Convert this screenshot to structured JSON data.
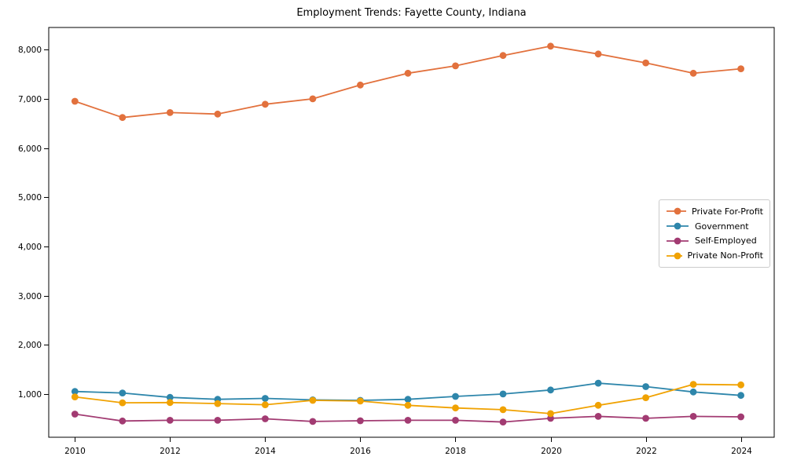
{
  "page": {
    "background_color": "#ffffff",
    "text_color": "#000000",
    "frame_color": "#000000",
    "legend_border_color": "#cbcbcb"
  },
  "chart_data": {
    "type": "line",
    "title": "Employment Trends: Fayette County, Indiana",
    "xlabel": "",
    "ylabel": "",
    "grid": false,
    "legend_position": "center right",
    "xlim": [
      2009.45,
      2024.7
    ],
    "ylim": [
      120,
      8450
    ],
    "x_ticks": [
      2010,
      2012,
      2014,
      2016,
      2018,
      2020,
      2022,
      2024
    ],
    "y_ticks": [
      1000,
      2000,
      3000,
      4000,
      5000,
      6000,
      7000,
      8000
    ],
    "y_tick_labels": [
      "1,000",
      "2,000",
      "3,000",
      "4,000",
      "5,000",
      "6,000",
      "7,000",
      "8,000"
    ],
    "x": [
      2010,
      2011,
      2012,
      2013,
      2014,
      2015,
      2016,
      2017,
      2018,
      2019,
      2020,
      2021,
      2022,
      2023,
      2024
    ],
    "series": [
      {
        "name": "Private For-Profit",
        "color": "#e2713d",
        "values": [
          6950,
          6620,
          6720,
          6690,
          6890,
          7000,
          7280,
          7520,
          7670,
          7880,
          8070,
          7910,
          7730,
          7520,
          7610
        ]
      },
      {
        "name": "Government",
        "color": "#2e86ab",
        "values": [
          1050,
          1020,
          930,
          890,
          910,
          880,
          870,
          890,
          950,
          1000,
          1080,
          1220,
          1150,
          1040,
          970
        ]
      },
      {
        "name": "Self-Employed",
        "color": "#a23b72",
        "values": [
          590,
          450,
          465,
          465,
          495,
          440,
          455,
          465,
          465,
          430,
          505,
          545,
          505,
          545,
          535
        ]
      },
      {
        "name": "Private Non-Profit",
        "color": "#f0a202",
        "values": [
          940,
          820,
          825,
          805,
          780,
          870,
          855,
          770,
          715,
          680,
          600,
          770,
          925,
          1195,
          1185
        ]
      }
    ],
    "legend": {
      "entries": [
        "Private For-Profit",
        "Government",
        "Self-Employed",
        "Private Non-Profit"
      ]
    }
  }
}
